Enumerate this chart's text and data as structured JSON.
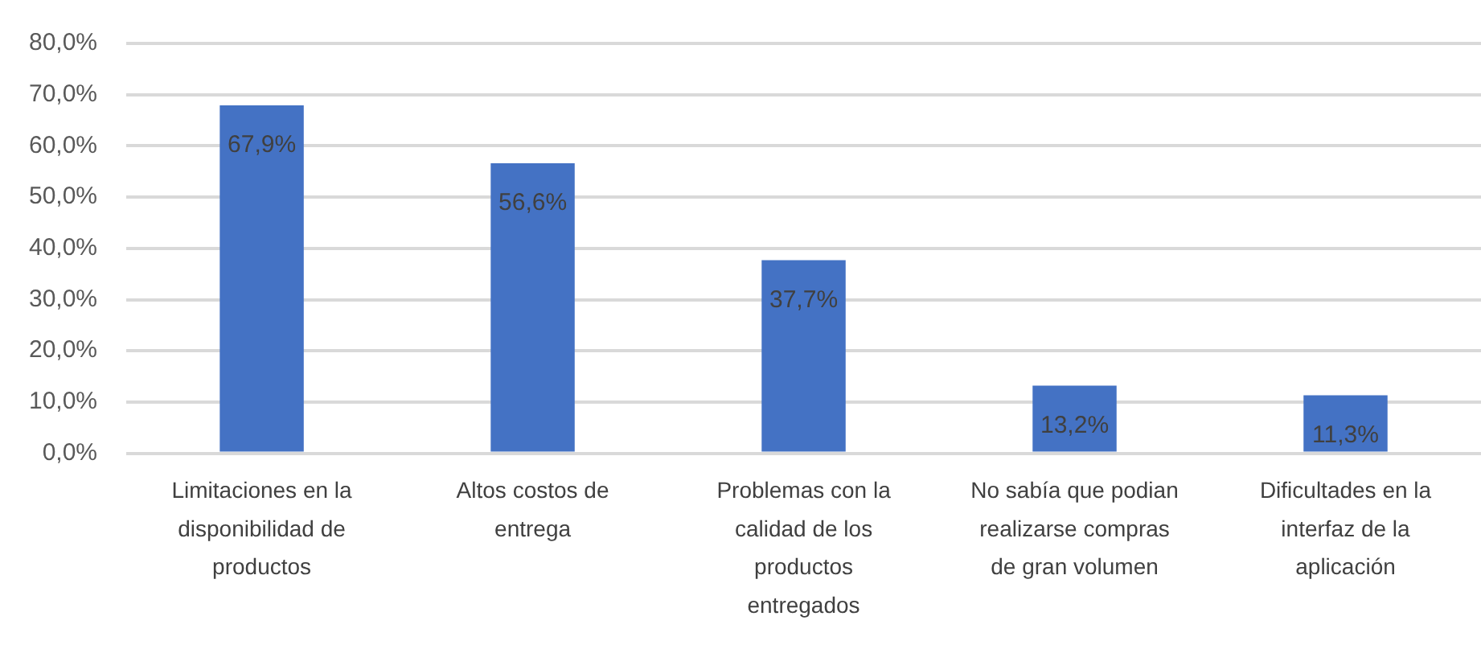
{
  "chart_data": {
    "type": "bar",
    "categories": [
      "Limitaciones en la disponibilidad de productos",
      "Altos costos de entrega",
      "Problemas con la calidad de los productos entregados",
      "No sabía que podian realizarse compras de gran volumen",
      "Dificultades en la interfaz de la aplicación"
    ],
    "values": [
      67.9,
      56.6,
      37.7,
      13.2,
      11.3
    ],
    "color": "#4472c4",
    "value_labels": [
      "67,9%",
      "56,6%",
      "37,7%",
      "13,2%",
      "11,3%"
    ],
    "ylim": [
      0,
      80
    ],
    "yticks": [
      {
        "value": 0,
        "label": "0,0%"
      },
      {
        "value": 10,
        "label": "10,0%"
      },
      {
        "value": 20,
        "label": "20,0%"
      },
      {
        "value": 30,
        "label": "30,0%"
      },
      {
        "value": 40,
        "label": "40,0%"
      },
      {
        "value": 50,
        "label": "50,0%"
      },
      {
        "value": 60,
        "label": "60,0%"
      },
      {
        "value": 70,
        "label": "70,0%"
      },
      {
        "value": 80,
        "label": "80,0%"
      }
    ],
    "grid": "y"
  }
}
